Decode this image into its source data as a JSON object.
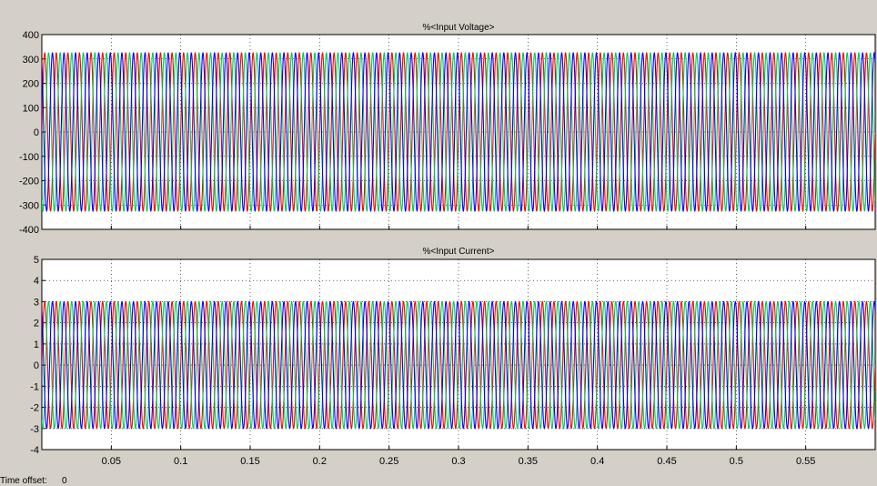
{
  "chart_data": [
    {
      "type": "line",
      "title": "%<Input Voltage>",
      "xlim": [
        0,
        0.6
      ],
      "ylim": [
        -400,
        400
      ],
      "yticks": [
        -400,
        -300,
        -200,
        -100,
        0,
        100,
        200,
        300,
        400
      ],
      "grid": true,
      "frequency_hz": 120,
      "series": [
        {
          "amplitude": 325,
          "phase_deg": 0,
          "color": "#ff0000"
        },
        {
          "amplitude": 325,
          "phase_deg": 120,
          "color": "#00cc44"
        },
        {
          "amplitude": 325,
          "phase_deg": 240,
          "color": "#0000ff"
        }
      ]
    },
    {
      "type": "line",
      "title": "%<Input Current>",
      "xlim": [
        0,
        0.6
      ],
      "ylim": [
        -4,
        5
      ],
      "yticks": [
        -4,
        -3,
        -2,
        -1,
        0,
        1,
        2,
        3,
        4,
        5
      ],
      "xticks": [
        0.05,
        0.1,
        0.15,
        0.2,
        0.25,
        0.3,
        0.35,
        0.4,
        0.45,
        0.5,
        0.55
      ],
      "xtick_labels": [
        "0.05",
        "0.1",
        "0.15",
        "0.2",
        "0.25",
        "0.3",
        "0.35",
        "0.4",
        "0.45",
        "0.5",
        "0.55"
      ],
      "grid": true,
      "frequency_hz": 120,
      "series": [
        {
          "amplitude": 3,
          "phase_deg": 0,
          "color": "#ff0000"
        },
        {
          "amplitude": 3,
          "phase_deg": 120,
          "color": "#00cc44"
        },
        {
          "amplitude": 3,
          "phase_deg": 240,
          "color": "#0000ff"
        }
      ]
    }
  ],
  "footer": {
    "time_offset_label": "Time offset:",
    "time_offset_value": "0"
  }
}
